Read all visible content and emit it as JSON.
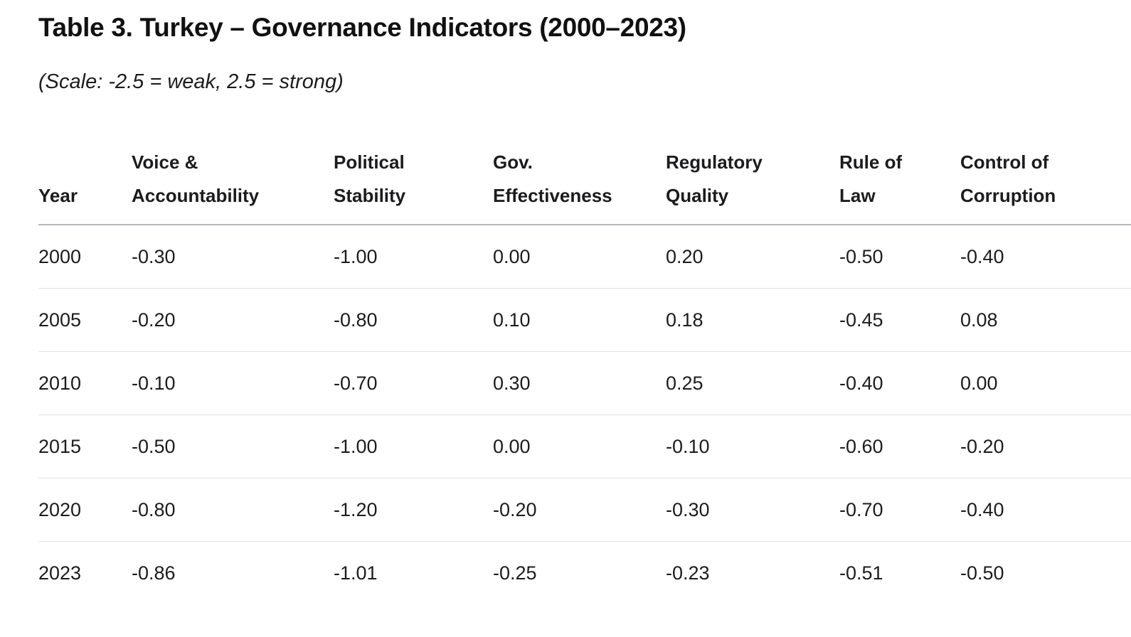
{
  "title": "Table 3. Turkey – Governance Indicators (2000–2023)",
  "subtitle": "(Scale: -2.5 = weak, 2.5 = strong)",
  "headers": [
    [
      "",
      "Year"
    ],
    [
      "Voice &",
      "Accountability"
    ],
    [
      "Political",
      "Stability"
    ],
    [
      "Gov.",
      "Effectiveness"
    ],
    [
      "Regulatory",
      "Quality"
    ],
    [
      "Rule of",
      "Law"
    ],
    [
      "Control of",
      "Corruption"
    ]
  ],
  "rows": [
    [
      "2000",
      "-0.30",
      "-1.00",
      "0.00",
      "0.20",
      "-0.50",
      "-0.40"
    ],
    [
      "2005",
      "-0.20",
      "-0.80",
      "0.10",
      "0.18",
      "-0.45",
      "0.08"
    ],
    [
      "2010",
      "-0.10",
      "-0.70",
      "0.30",
      "0.25",
      "-0.40",
      "0.00"
    ],
    [
      "2015",
      "-0.50",
      "-1.00",
      "0.00",
      "-0.10",
      "-0.60",
      "-0.20"
    ],
    [
      "2020",
      "-0.80",
      "-1.20",
      "-0.20",
      "-0.30",
      "-0.70",
      "-0.40"
    ],
    [
      "2023",
      "-0.86",
      "-1.01",
      "-0.25",
      "-0.23",
      "-0.51",
      "-0.50"
    ]
  ]
}
